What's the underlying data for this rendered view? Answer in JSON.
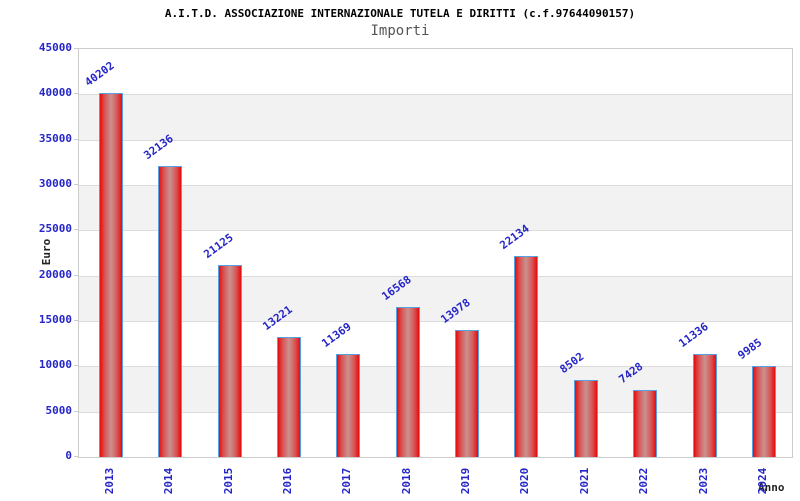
{
  "header": {
    "title": "A.I.T.D. ASSOCIAZIONE INTERNAZIONALE TUTELA E DIRITTI (c.f.97644090157)",
    "subtitle": "Importi"
  },
  "chart_data": {
    "type": "bar",
    "title": "A.I.T.D. ASSOCIAZIONE INTERNAZIONALE TUTELA E DIRITTI (c.f.97644090157)",
    "subtitle": "Importi",
    "categories": [
      "2013",
      "2014",
      "2015",
      "2016",
      "2017",
      "2018",
      "2019",
      "2020",
      "2021",
      "2022",
      "2023",
      "2024"
    ],
    "values": [
      40202,
      32136,
      21125,
      13221,
      11369,
      16568,
      13978,
      22134,
      8502,
      7428,
      11336,
      9985
    ],
    "xlabel": "Anno",
    "ylabel": "Euro",
    "ylim": [
      0,
      45000
    ],
    "ytick_step": 5000,
    "yticks": [
      0,
      5000,
      10000,
      15000,
      20000,
      25000,
      30000,
      35000,
      40000,
      45000
    ],
    "grid": "horizontal",
    "alternating_bands": true,
    "legend": "none",
    "colors": {
      "bar_fill_edge": "#e60c0c",
      "bar_fill_mid": "#d85555",
      "bar_fill_center": "#ca9191",
      "bar_border": "#58a0e0",
      "value_label": "#2525c8",
      "tick_label": "#2525c8",
      "title_text": "#000000",
      "subtitle_text": "#555555",
      "axis_label_text": "#222222",
      "band_gray": "#f2f2f2",
      "band_white": "#ffffff",
      "gridline": "#dcdcdc",
      "plot_border": "#cccccc"
    }
  }
}
